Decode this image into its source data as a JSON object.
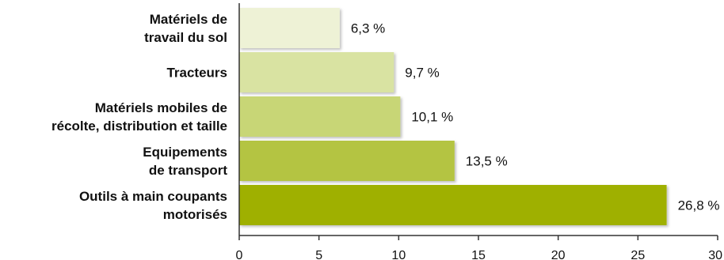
{
  "chart_data": {
    "type": "bar",
    "orientation": "horizontal",
    "categories": [
      [
        "Matériels de",
        "travail du sol"
      ],
      [
        "Tracteurs"
      ],
      [
        "Matériels mobiles de",
        "récolte, distribution et taille"
      ],
      [
        "Equipements",
        "de transport"
      ],
      [
        "Outils à main coupants",
        "motorisés"
      ]
    ],
    "values": [
      6.3,
      9.7,
      10.1,
      13.5,
      26.8
    ],
    "value_labels": [
      "6,3 %",
      "9,7 %",
      "10,1 %",
      "13,5 %",
      "26,8 %"
    ],
    "bar_colors": [
      "#eef2d6",
      "#d9e3a2",
      "#c8d676",
      "#b4c442",
      "#9fb000"
    ],
    "xlim": [
      0,
      30
    ],
    "xticks": [
      0,
      5,
      10,
      15,
      20,
      25,
      30
    ],
    "grid": false,
    "title": "",
    "xlabel": "",
    "ylabel": ""
  }
}
